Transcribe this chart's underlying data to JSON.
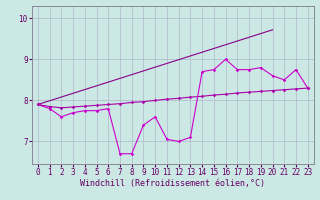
{
  "xlabel": "Windchill (Refroidissement éolien,°C)",
  "hours": [
    0,
    1,
    2,
    3,
    4,
    5,
    6,
    7,
    8,
    9,
    10,
    11,
    12,
    13,
    14,
    15,
    16,
    17,
    18,
    19,
    20,
    21,
    22,
    23
  ],
  "line1": [
    7.9,
    7.8,
    7.6,
    7.7,
    7.75,
    7.75,
    7.8,
    6.7,
    6.7,
    7.4,
    7.6,
    7.05,
    7.0,
    7.1,
    8.7,
    8.75,
    9.0,
    8.75,
    8.75,
    8.8,
    8.6,
    8.5,
    8.75,
    8.3
  ],
  "line2_x": [
    0,
    20
  ],
  "line2_y": [
    7.9,
    9.72
  ],
  "line3": [
    7.9,
    7.85,
    7.82,
    7.84,
    7.86,
    7.88,
    7.9,
    7.92,
    7.95,
    7.97,
    8.0,
    8.03,
    8.05,
    8.08,
    8.1,
    8.13,
    8.15,
    8.18,
    8.2,
    8.22,
    8.24,
    8.26,
    8.28,
    8.3
  ],
  "bg_color": "#cbe8e4",
  "grid_color": "#b0b8cc",
  "line1_color": "#cc00cc",
  "line2_color": "#880088",
  "line3_color": "#aa00aa",
  "marker": "D",
  "marker_size": 1.8,
  "ylim": [
    6.45,
    10.3
  ],
  "yticks": [
    7,
    8,
    9,
    10
  ],
  "xticks": [
    0,
    1,
    2,
    3,
    4,
    5,
    6,
    7,
    8,
    9,
    10,
    11,
    12,
    13,
    14,
    15,
    16,
    17,
    18,
    19,
    20,
    21,
    22,
    23
  ],
  "tick_fontsize": 5.5,
  "label_fontsize": 6.0
}
